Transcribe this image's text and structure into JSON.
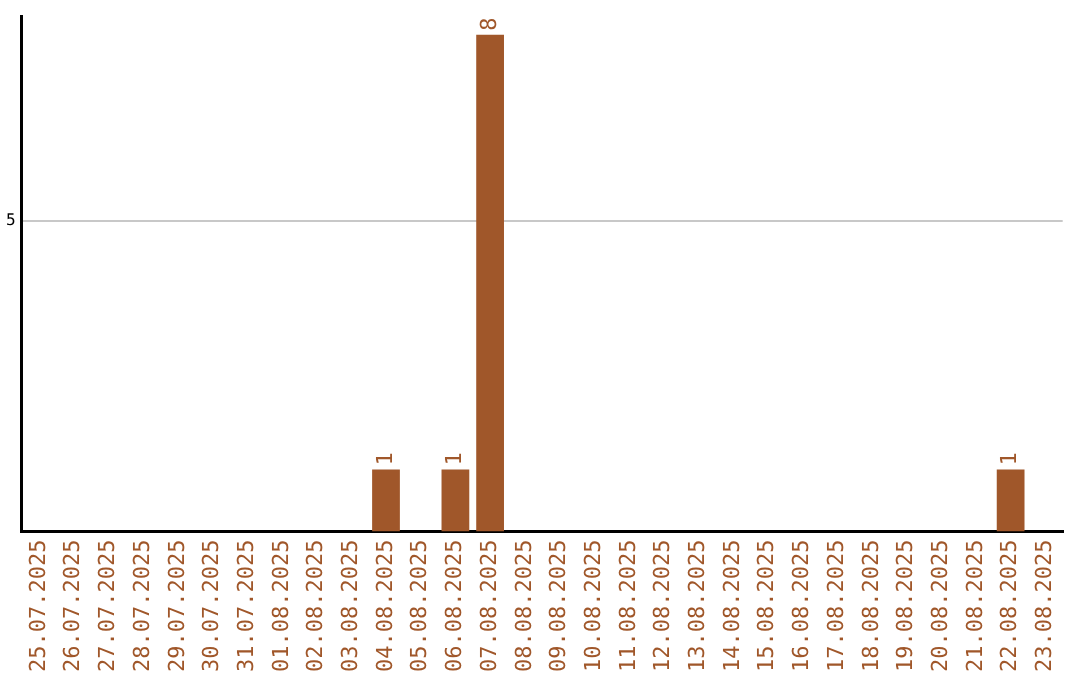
{
  "chart_data": {
    "type": "bar",
    "categories": [
      "25.07.2025",
      "26.07.2025",
      "27.07.2025",
      "28.07.2025",
      "29.07.2025",
      "30.07.2025",
      "31.07.2025",
      "01.08.2025",
      "02.08.2025",
      "03.08.2025",
      "04.08.2025",
      "05.08.2025",
      "06.08.2025",
      "07.08.2025",
      "08.08.2025",
      "09.08.2025",
      "10.08.2025",
      "11.08.2025",
      "12.08.2025",
      "13.08.2025",
      "14.08.2025",
      "15.08.2025",
      "16.08.2025",
      "17.08.2025",
      "18.08.2025",
      "19.08.2025",
      "20.08.2025",
      "21.08.2025",
      "22.08.2025",
      "23.08.2025"
    ],
    "values": [
      0,
      0,
      0,
      0,
      0,
      0,
      0,
      0,
      0,
      0,
      1,
      0,
      1,
      8,
      0,
      0,
      0,
      0,
      0,
      0,
      0,
      0,
      0,
      0,
      0,
      0,
      0,
      0,
      1,
      0
    ],
    "value_labels": [
      null,
      null,
      null,
      null,
      null,
      null,
      null,
      null,
      null,
      null,
      "1",
      null,
      "1",
      "8",
      null,
      null,
      null,
      null,
      null,
      null,
      null,
      null,
      null,
      null,
      null,
      null,
      null,
      null,
      "1",
      null
    ],
    "color": "#a0572a",
    "ylim": [
      0,
      8.3
    ],
    "yticks": [
      5
    ],
    "grid": "y",
    "legend": false
  }
}
